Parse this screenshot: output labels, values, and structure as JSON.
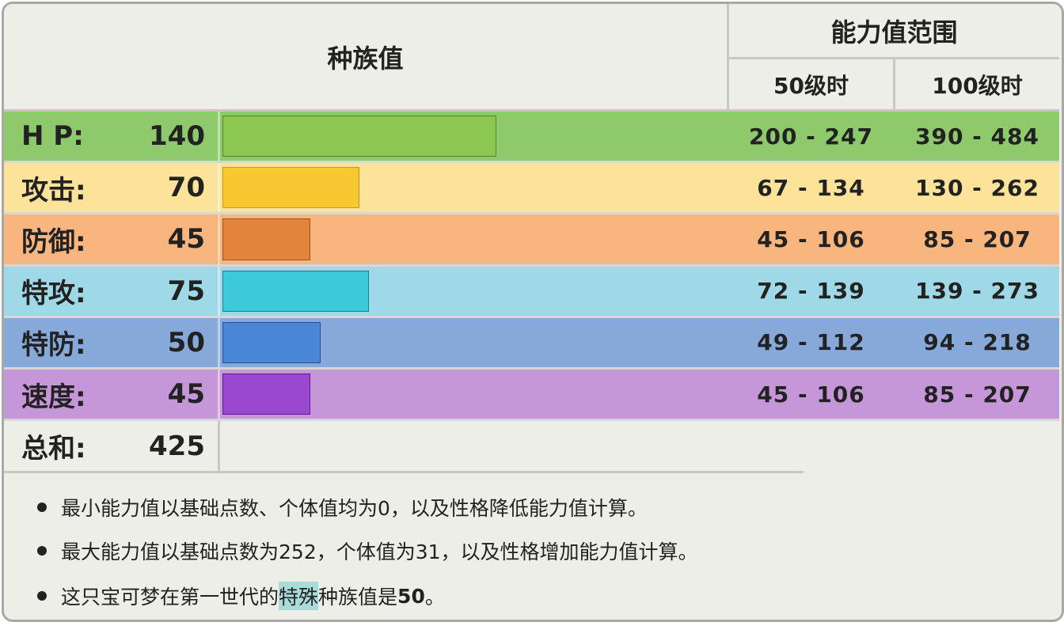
{
  "chart_data": {
    "type": "bar",
    "title": "种族值",
    "range_title": "能力值范围",
    "range_cols": [
      "50级时",
      "100级时"
    ],
    "xlim": [
      0,
      255
    ],
    "rows": [
      {
        "label": "H P:",
        "value": 140,
        "range50": "200 - 247",
        "range100": "390 - 484",
        "row_color": "#8ec96c",
        "bar_color": "#8bc751",
        "bar_border": "#4f8a2a"
      },
      {
        "label": "攻击:",
        "value": 70,
        "range50": "67 - 134",
        "range100": "130 - 262",
        "row_color": "#fde29a",
        "bar_color": "#f8c832",
        "bar_border": "#c99a10"
      },
      {
        "label": "防御:",
        "value": 45,
        "range50": "45 - 106",
        "range100": "85 - 207",
        "row_color": "#f8b57d",
        "bar_color": "#e2843c",
        "bar_border": "#9c5219"
      },
      {
        "label": "特攻:",
        "value": 75,
        "range50": "72 - 139",
        "range100": "139 - 273",
        "row_color": "#9fd8e6",
        "bar_color": "#3ec9d8",
        "bar_border": "#1f7f8f"
      },
      {
        "label": "特防:",
        "value": 50,
        "range50": "49 - 112",
        "range100": "94 - 218",
        "row_color": "#86a9d9",
        "bar_color": "#4a86d6",
        "bar_border": "#244f94"
      },
      {
        "label": "速度:",
        "value": 45,
        "range50": "45 - 106",
        "range100": "85 - 207",
        "row_color": "#c597d9",
        "bar_color": "#9a48d1",
        "bar_border": "#5a1f86"
      }
    ],
    "total": {
      "label": "总和:",
      "value": 425
    }
  },
  "notes": {
    "n1": "最小能力值以基础点数、个体值均为0，以及性格降低能力值计算。",
    "n2": "最大能力值以基础点数为252，个体值为31，以及性格增加能力值计算。",
    "n3_pre": "这只宝可梦在第一世代的",
    "n3_hl": "特殊",
    "n3_mid": "种族值是",
    "n3_val": "50",
    "n3_end": "。"
  },
  "colors": {
    "frame_bg": "#eeeee8",
    "border": "#a9a9a3",
    "highlight": "#a9dcd9"
  }
}
